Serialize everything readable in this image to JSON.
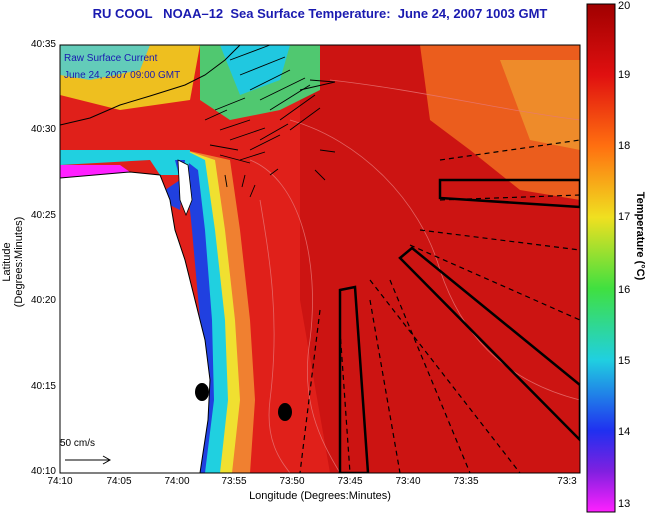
{
  "title": "RU COOL   NOAA–12  Sea Surface Temperature:  June 24, 2007 1003 GMT",
  "current_label_line1": "Raw Surface Current",
  "current_label_line2": "June 24, 2007 09:00 GMT",
  "scale_label": "50 cm/s",
  "y_axis": {
    "label": "Latitude (Degrees:Minutes)",
    "ticks": [
      "40:35",
      "40:30",
      "40:25",
      "40:20",
      "40:15",
      "40:10"
    ]
  },
  "x_axis": {
    "label": "Longitude (Degrees:Minutes)",
    "ticks": [
      "74:10",
      "74:05",
      "74:00",
      "73:55",
      "73:50",
      "73:45",
      "73:40",
      "73:35",
      "73:3"
    ]
  },
  "colorbar": {
    "title": "Temperature (°C)",
    "ticks": [
      "20",
      "19",
      "18",
      "17",
      "16",
      "15",
      "14",
      "13"
    ],
    "min": 13,
    "max": 20
  },
  "colors": {
    "warm": "#e0201a",
    "hot": "#c81010",
    "orange": "#f07020",
    "cold_blue": "#2040e0",
    "cyan": "#20d0e0",
    "magenta": "#ff20ff",
    "land": "#ffffff"
  }
}
